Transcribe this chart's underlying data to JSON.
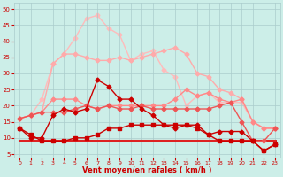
{
  "x": [
    0,
    1,
    2,
    3,
    4,
    5,
    6,
    7,
    8,
    9,
    10,
    11,
    12,
    13,
    14,
    15,
    16,
    17,
    18,
    19,
    20,
    21,
    22,
    23
  ],
  "series": [
    {
      "name": "flat_bottom",
      "y": [
        9,
        9,
        9,
        9,
        9,
        9,
        9,
        9,
        9,
        9,
        9,
        9,
        9,
        9,
        9,
        9,
        9,
        9,
        9,
        9,
        9,
        9,
        9,
        9
      ],
      "color": "#cc0000",
      "linewidth": 2.0,
      "marker": null,
      "zorder": 2
    },
    {
      "name": "flat_bottom2",
      "y": [
        9,
        9,
        9,
        9,
        9,
        9,
        9,
        9,
        9,
        9,
        9,
        9,
        9,
        9,
        9,
        9,
        9,
        9,
        9,
        9,
        9,
        9,
        9,
        9
      ],
      "color": "#dd2222",
      "linewidth": 1.5,
      "marker": null,
      "zorder": 2
    },
    {
      "name": "wind_min",
      "y": [
        13,
        11,
        9,
        9,
        9,
        10,
        10,
        11,
        13,
        13,
        14,
        14,
        14,
        14,
        14,
        14,
        13,
        11,
        9,
        9,
        9,
        9,
        6,
        8
      ],
      "color": "#cc0000",
      "linewidth": 1.0,
      "marker": "s",
      "markersize": 2.5,
      "zorder": 5
    },
    {
      "name": "wind_moyen",
      "y": [
        13,
        10,
        10,
        17,
        19,
        18,
        19,
        28,
        26,
        22,
        22,
        19,
        17,
        14,
        13,
        14,
        14,
        11,
        12,
        12,
        12,
        9,
        6,
        8
      ],
      "color": "#cc0000",
      "linewidth": 1.0,
      "marker": "D",
      "markersize": 2.5,
      "zorder": 6
    },
    {
      "name": "rafales_dark",
      "y": [
        16,
        17,
        18,
        18,
        18,
        19,
        20,
        19,
        20,
        19,
        19,
        20,
        19,
        19,
        19,
        19,
        19,
        19,
        20,
        21,
        15,
        9,
        9,
        13
      ],
      "color": "#ee5555",
      "linewidth": 1.0,
      "marker": "D",
      "markersize": 2.5,
      "zorder": 4
    },
    {
      "name": "rafales_mid1",
      "y": [
        16,
        17,
        18,
        22,
        22,
        22,
        20,
        19,
        20,
        20,
        20,
        20,
        20,
        20,
        22,
        25,
        23,
        24,
        22,
        21,
        22,
        15,
        13,
        13
      ],
      "color": "#ff8888",
      "linewidth": 1.0,
      "marker": "D",
      "markersize": 2.5,
      "zorder": 3
    },
    {
      "name": "rafales_high1",
      "y": [
        16,
        17,
        18,
        33,
        36,
        36,
        35,
        34,
        34,
        35,
        34,
        35,
        36,
        37,
        38,
        36,
        30,
        29,
        25,
        24,
        22,
        15,
        13,
        13
      ],
      "color": "#ffaaaa",
      "linewidth": 1.0,
      "marker": "D",
      "markersize": 2.5,
      "zorder": 2
    },
    {
      "name": "rafales_high2",
      "y": [
        16,
        17,
        22,
        33,
        36,
        41,
        47,
        48,
        44,
        42,
        34,
        36,
        37,
        31,
        29,
        20,
        23,
        24,
        21,
        21,
        21,
        15,
        13,
        13
      ],
      "color": "#ffbbbb",
      "linewidth": 1.0,
      "marker": "D",
      "markersize": 2.5,
      "zorder": 1
    }
  ],
  "bg_color": "#cceee8",
  "grid_color": "#aacccc",
  "tick_color": "#cc0000",
  "label_color": "#cc0000",
  "xlabel": "Vent moyen/en rafales ( km/h )",
  "ylim": [
    4,
    52
  ],
  "xlim": [
    -0.5,
    23.5
  ],
  "yticks": [
    5,
    10,
    15,
    20,
    25,
    30,
    35,
    40,
    45,
    50
  ],
  "xticks": [
    0,
    1,
    2,
    3,
    4,
    5,
    6,
    7,
    8,
    9,
    10,
    11,
    12,
    13,
    14,
    15,
    16,
    17,
    18,
    19,
    20,
    21,
    22,
    23
  ]
}
